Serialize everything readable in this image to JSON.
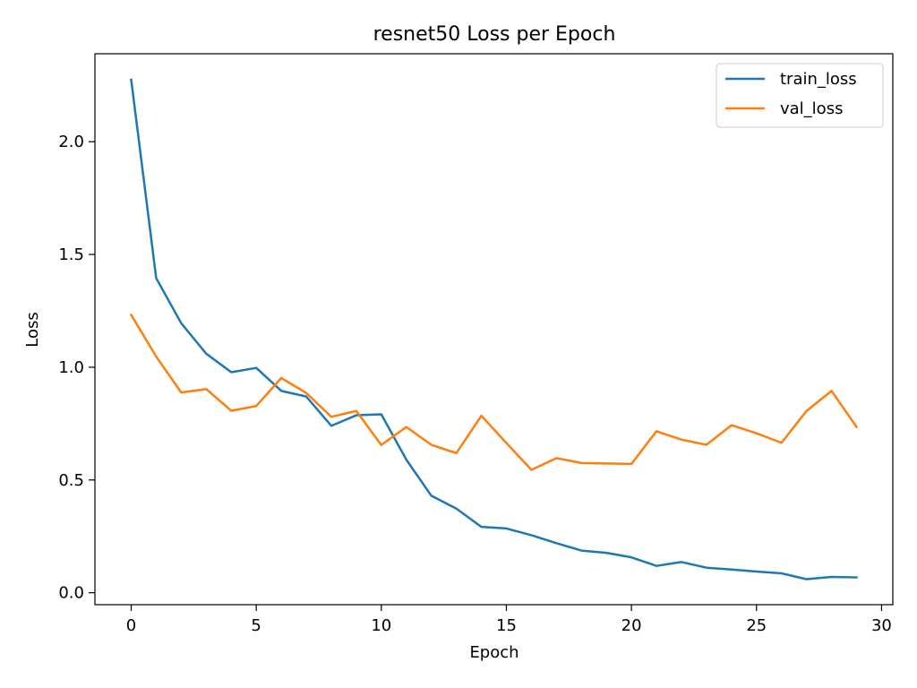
{
  "chart_data": {
    "type": "line",
    "title": "resnet50 Loss per Epoch",
    "xlabel": "Epoch",
    "ylabel": "Loss",
    "xlim": [
      -1.45,
      30.45
    ],
    "ylim": [
      -0.053,
      2.39
    ],
    "xticks": [
      0,
      5,
      10,
      15,
      20,
      25,
      30
    ],
    "yticks": [
      0.0,
      0.5,
      1.0,
      1.5,
      2.0
    ],
    "ytick_labels": [
      "0.0",
      "0.5",
      "1.0",
      "1.5",
      "2.0"
    ],
    "grid": false,
    "legend_position": "top-right",
    "x": [
      0,
      1,
      2,
      3,
      4,
      5,
      6,
      7,
      8,
      9,
      10,
      11,
      12,
      13,
      14,
      15,
      16,
      17,
      18,
      19,
      20,
      21,
      22,
      23,
      24,
      25,
      26,
      27,
      28,
      29
    ],
    "series": [
      {
        "name": "train_loss",
        "color": "#1f77b4",
        "values": [
          2.275,
          1.395,
          1.195,
          1.06,
          0.978,
          0.997,
          0.895,
          0.87,
          0.74,
          0.787,
          0.791,
          0.59,
          0.43,
          0.373,
          0.292,
          0.285,
          0.255,
          0.22,
          0.187,
          0.177,
          0.157,
          0.119,
          0.136,
          0.111,
          0.103,
          0.094,
          0.086,
          0.06,
          0.07,
          0.068
        ]
      },
      {
        "name": "val_loss",
        "color": "#ff7f0e",
        "values": [
          1.232,
          1.047,
          0.888,
          0.903,
          0.807,
          0.828,
          0.952,
          0.886,
          0.78,
          0.806,
          0.655,
          0.735,
          0.656,
          0.619,
          0.785,
          0.664,
          0.545,
          0.597,
          0.575,
          0.573,
          0.571,
          0.716,
          0.679,
          0.656,
          0.743,
          0.707,
          0.665,
          0.806,
          0.895,
          0.735
        ]
      }
    ]
  }
}
